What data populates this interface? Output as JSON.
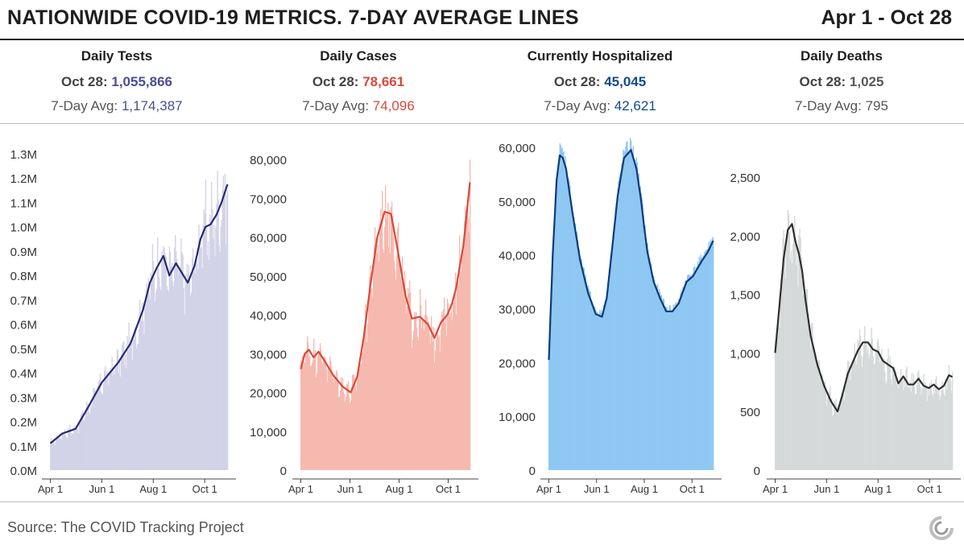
{
  "title": "NATIONWIDE COVID-19 METRICS. 7-DAY AVERAGE LINES",
  "date_range": "Apr 1 - Oct 28",
  "source": "Source: The COVID Tracking Project",
  "metrics": [
    {
      "name": "Daily Tests",
      "latest_label": "Oct 28:",
      "latest_value": "1,055,866",
      "avg_label": "7-Day Avg:",
      "avg_value": "1,174,387",
      "color": "#4b4f93"
    },
    {
      "name": "Daily Cases",
      "latest_label": "Oct 28:",
      "latest_value": "78,661",
      "avg_label": "7-Day Avg:",
      "avg_value": "74,096",
      "color": "#d9493a"
    },
    {
      "name": "Currently Hospitalized",
      "latest_label": "Oct 28:",
      "latest_value": "45,045",
      "avg_label": "7-Day Avg:",
      "avg_value": "42,621",
      "color": "#15498f"
    },
    {
      "name": "Daily Deaths",
      "latest_label": "Oct 28:",
      "latest_value": "1,025",
      "avg_label": "7-Day Avg:",
      "avg_value": "795",
      "color": "#585858"
    }
  ],
  "chart_data": [
    {
      "type": "bar",
      "title": "Daily Tests",
      "x_ticks": [
        "Apr 1",
        "Jun 1",
        "Aug 1",
        "Oct 1"
      ],
      "y_ticks": [
        "0.0M",
        "0.1M",
        "0.2M",
        "0.3M",
        "0.4M",
        "0.5M",
        "0.6M",
        "0.7M",
        "0.8M",
        "0.9M",
        "1.0M",
        "1.1M",
        "1.2M",
        "1.3M"
      ],
      "ylim": [
        0,
        1300000
      ],
      "bar_color": "#d3d3e8",
      "line_color": "#262a70",
      "avg_line_keypoints": {
        "days": [
          0,
          14,
          30,
          45,
          61,
          80,
          95,
          110,
          118,
          126,
          134,
          141,
          149,
          156,
          163,
          171,
          178,
          184,
          190,
          197,
          203,
          210
        ],
        "values": [
          110000,
          150000,
          170000,
          260000,
          360000,
          440000,
          520000,
          660000,
          770000,
          830000,
          880000,
          800000,
          850000,
          810000,
          770000,
          840000,
          950000,
          1000000,
          1010000,
          1050000,
          1100000,
          1174387
        ]
      }
    },
    {
      "type": "bar",
      "title": "Daily Cases",
      "x_ticks": [
        "Apr 1",
        "Jun 1",
        "Aug 1",
        "Oct 1"
      ],
      "y_ticks": [
        "0",
        "10,000",
        "20,000",
        "30,000",
        "40,000",
        "50,000",
        "60,000",
        "70,000",
        "80,000"
      ],
      "ylim": [
        0,
        83000
      ],
      "bar_color": "#f6b9af",
      "line_color": "#d9493a",
      "avg_line_keypoints": {
        "days": [
          0,
          5,
          10,
          16,
          22,
          30,
          40,
          52,
          62,
          70,
          78,
          86,
          95,
          104,
          112,
          120,
          130,
          138,
          148,
          158,
          166,
          174,
          182,
          188,
          193,
          197,
          202,
          206,
          210
        ],
        "values": [
          26000,
          30000,
          31000,
          29000,
          30500,
          28000,
          24500,
          21500,
          20000,
          24000,
          34000,
          47000,
          60000,
          66500,
          66000,
          57000,
          45000,
          39000,
          39500,
          37500,
          34000,
          38000,
          40000,
          43000,
          47000,
          52000,
          58000,
          66000,
          74096
        ]
      }
    },
    {
      "type": "bar",
      "title": "Currently Hospitalized",
      "x_ticks": [
        "Apr 1",
        "Jun 1",
        "Aug 1",
        "Oct 1"
      ],
      "y_ticks": [
        "0",
        "10,000",
        "20,000",
        "30,000",
        "40,000",
        "50,000",
        "60,000"
      ],
      "ylim": [
        0,
        60000
      ],
      "bar_color": "#8ec8f2",
      "line_color": "#0e3a7a",
      "avg_line_keypoints": {
        "days": [
          0,
          5,
          10,
          14,
          18,
          22,
          30,
          40,
          50,
          60,
          68,
          74,
          80,
          88,
          96,
          105,
          112,
          118,
          122,
          126,
          134,
          142,
          150,
          158,
          166,
          176,
          184,
          190,
          196,
          203,
          210
        ],
        "values": [
          20500,
          40000,
          54000,
          58500,
          58000,
          56000,
          48000,
          39000,
          33000,
          29000,
          28500,
          32000,
          40000,
          51000,
          58000,
          59500,
          56000,
          50000,
          45000,
          40500,
          35000,
          32000,
          29500,
          29500,
          31000,
          35000,
          36000,
          37500,
          39000,
          40500,
          42621
        ]
      }
    },
    {
      "type": "bar",
      "title": "Daily Deaths",
      "x_ticks": [
        "Apr 1",
        "Jun 1",
        "Aug 1",
        "Oct 1"
      ],
      "y_ticks": [
        "0",
        "500",
        "1,000",
        "1,500",
        "2,000",
        "2,500"
      ],
      "ylim": [
        0,
        2750
      ],
      "bar_color": "#d6d9d9",
      "line_color": "#2e2e2e",
      "avg_line_keypoints": {
        "days": [
          0,
          5,
          10,
          15,
          20,
          24,
          28,
          32,
          36,
          42,
          50,
          58,
          66,
          74,
          80,
          86,
          92,
          98,
          104,
          110,
          116,
          122,
          128,
          134,
          140,
          146,
          152,
          158,
          164,
          170,
          176,
          182,
          188,
          194,
          200,
          206,
          210
        ],
        "values": [
          1000,
          1400,
          1800,
          2050,
          2100,
          1950,
          1850,
          1700,
          1450,
          1150,
          900,
          720,
          590,
          500,
          650,
          820,
          920,
          1020,
          1090,
          1090,
          1030,
          1010,
          930,
          900,
          870,
          740,
          800,
          730,
          730,
          780,
          720,
          700,
          730,
          690,
          720,
          810,
          795
        ]
      }
    }
  ]
}
